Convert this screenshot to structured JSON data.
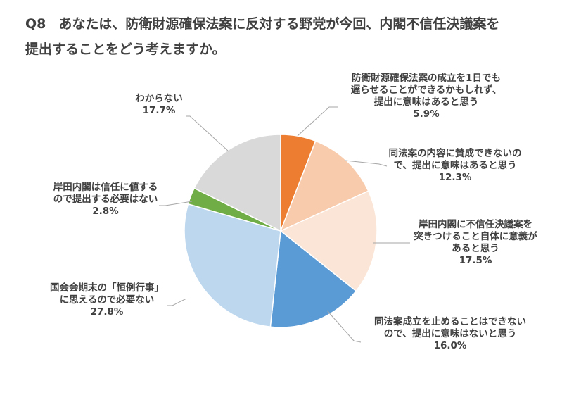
{
  "question": {
    "number": "Q8",
    "text_line1": "あなたは、防衛財源確保法案に反対する野党が今回、内閣不信任決議案を",
    "text_line2": "提出することをどう考えますか。"
  },
  "chart_data": {
    "type": "pie",
    "start_angle_deg": 0,
    "direction": "clockwise",
    "slices": [
      {
        "label_lines": [
          "防衛財源確保法案の成立を1日でも",
          "遅らせることができるかもしれず、",
          "提出に意味はあると思う"
        ],
        "value_text": "5.9%",
        "value": 5.9,
        "color": "#ED7D31"
      },
      {
        "label_lines": [
          "同法案の内容に賛成できないの",
          "で、提出に意味はあると思う"
        ],
        "value_text": "12.3%",
        "value": 12.3,
        "color": "#F8CBAD"
      },
      {
        "label_lines": [
          "岸田内閣に不信任決議案を",
          "突きつけること自体に意義が",
          "あると思う"
        ],
        "value_text": "17.5%",
        "value": 17.5,
        "color": "#FBE5D6"
      },
      {
        "label_lines": [
          "同法案成立を止めることはできない",
          "ので、提出に意味はないと思う"
        ],
        "value_text": "16.0%",
        "value": 16.0,
        "color": "#5B9BD5"
      },
      {
        "label_lines": [
          "国会会期末の「恒例行事」",
          "に思えるので必要ない"
        ],
        "value_text": "27.8%",
        "value": 27.8,
        "color": "#BDD7EE"
      },
      {
        "label_lines": [
          "岸田内閣は信任に値する",
          "ので提出する必要はない"
        ],
        "value_text": "2.8%",
        "value": 2.8,
        "color": "#70AD47"
      },
      {
        "label_lines": [
          "わからない"
        ],
        "value_text": "17.7%",
        "value": 17.7,
        "color": "#D9D9D9"
      }
    ]
  }
}
